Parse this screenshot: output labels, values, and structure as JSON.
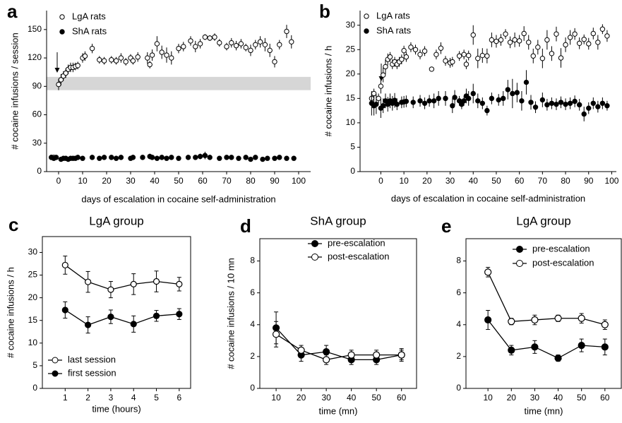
{
  "chart_data": [
    {
      "type": "scatter",
      "panel_label": "a",
      "ylabel": "# cocaine infusions / session",
      "xlabel": "days of escalation in cocaine self-administration",
      "xlim": [
        -5,
        105
      ],
      "ylim": [
        0,
        170
      ],
      "xticks": [
        0,
        10,
        20,
        30,
        40,
        50,
        60,
        70,
        80,
        90,
        100
      ],
      "yticks": [
        0,
        30,
        60,
        90,
        120,
        150
      ],
      "frame": false,
      "band": [
        86,
        100
      ],
      "legend": "upper left",
      "series": [
        {
          "name": "LgA rats",
          "color": "#000000",
          "fill": "#ffffff",
          "x": [
            -3,
            -2,
            0,
            1,
            2,
            3,
            4,
            5,
            6,
            7,
            8,
            10,
            11,
            14,
            17,
            19,
            22,
            24,
            26,
            28,
            30,
            31,
            33,
            37,
            38,
            39,
            41,
            43,
            45,
            47,
            50,
            52,
            55,
            57,
            59,
            61,
            63,
            65,
            67,
            70,
            72,
            74,
            76,
            78,
            80,
            82,
            84,
            86,
            88,
            90,
            92,
            95,
            97
          ],
          "values": [
            15,
            15,
            92,
            97,
            101,
            104,
            108,
            110,
            110,
            111,
            112,
            120,
            122,
            130,
            118,
            117,
            118,
            117,
            120,
            116,
            120,
            117,
            121,
            120,
            113,
            123,
            135,
            126,
            123,
            120,
            130,
            132,
            138,
            132,
            135,
            142,
            141,
            142,
            136,
            132,
            136,
            133,
            135,
            131,
            128,
            134,
            137,
            134,
            128,
            116,
            134,
            148,
            137
          ],
          "errors": [
            2,
            2,
            6,
            6,
            5,
            5,
            5,
            5,
            5,
            4,
            4,
            5,
            5,
            5,
            4,
            4,
            4,
            4,
            5,
            4,
            4,
            4,
            5,
            6,
            4,
            6,
            8,
            7,
            8,
            7,
            5,
            5,
            5,
            6,
            5,
            3,
            3,
            4,
            4,
            4,
            5,
            5,
            5,
            4,
            6,
            5,
            6,
            7,
            7,
            6,
            5,
            7,
            7
          ]
        },
        {
          "name": "ShA rats",
          "color": "#000000",
          "fill": "#000000",
          "x": [
            -3,
            -2,
            -1,
            1,
            2,
            3,
            4,
            5,
            6,
            7,
            8,
            10,
            14,
            17,
            19,
            22,
            24,
            26,
            30,
            31,
            35,
            38,
            39,
            41,
            43,
            45,
            47,
            50,
            54,
            57,
            59,
            61,
            63,
            67,
            70,
            72,
            75,
            78,
            80,
            82,
            85,
            87,
            90,
            92,
            95,
            98
          ],
          "values": [
            15,
            14,
            15,
            13,
            14,
            14,
            13,
            14,
            14,
            14,
            15,
            14,
            15,
            14,
            15,
            15,
            14,
            15,
            14,
            15,
            15,
            16,
            15,
            14,
            15,
            14,
            15,
            14,
            15,
            15,
            16,
            17,
            15,
            14,
            15,
            15,
            14,
            15,
            13,
            15,
            13,
            14,
            14,
            15,
            14,
            14
          ],
          "errors": [
            2,
            2,
            2,
            2,
            2,
            2,
            2,
            2,
            2,
            2,
            2,
            2,
            2,
            2,
            2,
            2,
            2,
            2,
            2,
            2,
            2,
            3,
            2,
            2,
            2,
            2,
            2,
            2,
            2,
            2,
            3,
            4,
            2,
            2,
            2,
            2,
            2,
            2,
            2,
            2,
            2,
            2,
            2,
            2,
            2,
            2
          ]
        }
      ]
    },
    {
      "type": "scatter",
      "panel_label": "b",
      "ylabel": "# cocaine infusions / h",
      "xlabel": "days of escalation in cocaine self-administration",
      "xlim": [
        -9,
        102
      ],
      "ylim": [
        0,
        33
      ],
      "xticks": [
        0,
        10,
        20,
        30,
        40,
        50,
        60,
        70,
        80,
        90,
        100
      ],
      "yticks": [
        0,
        5,
        10,
        15,
        20,
        25,
        30
      ],
      "frame": false,
      "legend": "upper left",
      "series": [
        {
          "name": "LgA rats",
          "color": "#000000",
          "fill": "#ffffff",
          "x": [
            -4,
            -3,
            -1,
            0,
            1,
            2,
            3,
            4,
            5,
            6,
            7,
            8,
            9,
            10,
            11,
            13,
            15,
            17,
            19,
            22,
            24,
            26,
            28,
            30,
            31,
            34,
            36,
            37,
            38,
            40,
            42,
            44,
            46,
            48,
            50,
            52,
            54,
            56,
            58,
            60,
            62,
            64,
            66,
            68,
            70,
            72,
            74,
            76,
            78,
            80,
            82,
            84,
            86,
            88,
            90,
            92,
            94,
            96,
            98
          ],
          "values": [
            15,
            16,
            15,
            17.5,
            19.8,
            21.5,
            23,
            23.5,
            22,
            22.5,
            22,
            22.5,
            23,
            24.8,
            23.5,
            25.5,
            25,
            24,
            24.7,
            21,
            24,
            25.3,
            22.7,
            22.3,
            22.5,
            23.7,
            24,
            22,
            23.8,
            28,
            23.2,
            23.8,
            23.7,
            27,
            26.7,
            27,
            28.2,
            26.5,
            27,
            26.8,
            28.3,
            26.5,
            23.7,
            25.5,
            23.2,
            27,
            24.2,
            28.2,
            23.3,
            26,
            27.5,
            28.2,
            26.3,
            27.1,
            26.2,
            28.3,
            26.5,
            29.2,
            27.8
          ],
          "errors": [
            1.2,
            1,
            1,
            1.5,
            1.5,
            1.5,
            1.2,
            1,
            1,
            1,
            1,
            1,
            1,
            1,
            1,
            1,
            1,
            1,
            1,
            0.5,
            1,
            1.2,
            1,
            1,
            1,
            1,
            1,
            1,
            1,
            2,
            2,
            1.5,
            1.5,
            1.5,
            1.3,
            1.2,
            1,
            1.2,
            1.5,
            1.2,
            1.5,
            1.5,
            1.5,
            1.5,
            2,
            2,
            1.5,
            1.5,
            2,
            1.5,
            1.5,
            1.2,
            1.2,
            1,
            1.2,
            1.2,
            1.5,
            1,
            1.2
          ]
        },
        {
          "name": "ShA rats",
          "color": "#000000",
          "fill": "#000000",
          "x": [
            -4,
            -3,
            -2,
            0,
            1,
            2,
            3,
            4,
            5,
            6,
            7,
            9,
            10,
            11,
            14,
            17,
            19,
            21,
            23,
            25,
            28,
            31,
            32,
            34,
            35,
            36,
            37,
            38,
            40,
            42,
            44,
            46,
            48,
            51,
            53,
            55,
            57,
            59,
            61,
            63,
            65,
            67,
            70,
            72,
            74,
            76,
            78,
            80,
            82,
            84,
            86,
            88,
            90,
            92,
            94,
            96,
            98
          ],
          "values": [
            14,
            13.5,
            13.8,
            13,
            13.5,
            14.5,
            13.8,
            14.5,
            14,
            14.6,
            13.8,
            14.2,
            14.3,
            14.4,
            14.2,
            14.5,
            14,
            14.5,
            14.5,
            15,
            15,
            13.5,
            15.2,
            14.5,
            13.8,
            14.5,
            15.5,
            15,
            16,
            14.5,
            14,
            12.5,
            15,
            14.7,
            15,
            16.8,
            16,
            16.2,
            14.5,
            18.3,
            14.2,
            13.2,
            14.7,
            13.7,
            14,
            13.8,
            14.2,
            13.8,
            14,
            14.4,
            13.7,
            11.8,
            13,
            14,
            13.3,
            14,
            13.5
          ],
          "errors": [
            2.5,
            2,
            2,
            2,
            1.5,
            1.5,
            1.5,
            1.5,
            1.5,
            1.5,
            1.2,
            1.2,
            1.2,
            1.2,
            1.2,
            1.2,
            1.2,
            1.2,
            1.5,
            1.5,
            1.5,
            1.5,
            1.5,
            1,
            1,
            1,
            1.5,
            1.5,
            2,
            1.5,
            1.2,
            1,
            1.2,
            1.2,
            1.5,
            2,
            3,
            2,
            2,
            2.5,
            1.5,
            1.2,
            1.5,
            1.2,
            1.2,
            1.2,
            1.2,
            1.2,
            1.2,
            1.2,
            1.2,
            1.5,
            1.2,
            1.2,
            1.2,
            1.2,
            1
          ]
        }
      ]
    },
    {
      "type": "line",
      "panel_label": "c",
      "title": "LgA group",
      "ylabel": "# cocaine infusions / h",
      "xlabel": "time (hours)",
      "x": [
        1,
        2,
        3,
        4,
        5,
        6
      ],
      "xlim": [
        0,
        6.5
      ],
      "ylim": [
        0,
        33.5
      ],
      "xticks": [
        1,
        2,
        3,
        4,
        5,
        6
      ],
      "yticks": [
        0,
        5,
        10,
        15,
        20,
        25,
        30
      ],
      "frame": true,
      "legend": "lower left",
      "series": [
        {
          "name": "last session",
          "color": "#000000",
          "fill": "#ffffff",
          "values": [
            27.2,
            23.5,
            21.8,
            23,
            23.6,
            23
          ],
          "errors": [
            2,
            2.3,
            1.8,
            2.3,
            2.3,
            1.5
          ]
        },
        {
          "name": "first session",
          "color": "#000000",
          "fill": "#000000",
          "values": [
            17.3,
            14,
            15.8,
            14.2,
            16,
            16.4
          ],
          "errors": [
            1.8,
            1.8,
            1.5,
            1.8,
            1.2,
            1.2
          ]
        }
      ]
    },
    {
      "type": "line",
      "panel_label": "d",
      "title": "ShA group",
      "ylabel": "# cocaine infusions / 10 mn",
      "xlabel": "time (mn)",
      "x": [
        10,
        20,
        30,
        40,
        50,
        60
      ],
      "xlim": [
        3.5,
        66
      ],
      "ylim": [
        0,
        9.4
      ],
      "xticks": [
        10,
        20,
        30,
        40,
        50,
        60
      ],
      "yticks": [
        0,
        2,
        4,
        6,
        8
      ],
      "frame": true,
      "legend": "upper right",
      "series": [
        {
          "name": "pre-escalation",
          "color": "#000000",
          "fill": "#000000",
          "values": [
            3.8,
            2.1,
            2.3,
            1.8,
            1.8,
            2.1
          ],
          "errors": [
            1,
            0.4,
            0.4,
            0.3,
            0.3,
            0.4
          ]
        },
        {
          "name": "post-escalation",
          "color": "#000000",
          "fill": "#ffffff",
          "values": [
            3.4,
            2.4,
            1.8,
            2.1,
            2.1,
            2.1
          ],
          "errors": [
            0.8,
            0.3,
            0.3,
            0.3,
            0.3,
            0.3
          ]
        }
      ]
    },
    {
      "type": "line",
      "panel_label": "e",
      "title": "LgA group",
      "ylabel": "",
      "xlabel": "time (mn)",
      "x": [
        10,
        20,
        30,
        40,
        50,
        60
      ],
      "xlim": [
        0.6,
        67
      ],
      "ylim": [
        0,
        9.4
      ],
      "xticks": [
        10,
        20,
        30,
        40,
        50,
        60
      ],
      "yticks": [
        0,
        2,
        4,
        6,
        8
      ],
      "frame": true,
      "legend": "upper right",
      "series": [
        {
          "name": "pre-escalation",
          "color": "#000000",
          "fill": "#000000",
          "values": [
            4.3,
            2.4,
            2.6,
            1.9,
            2.7,
            2.6
          ],
          "errors": [
            0.6,
            0.3,
            0.4,
            0.2,
            0.4,
            0.5
          ]
        },
        {
          "name": "post-escalation",
          "color": "#000000",
          "fill": "#ffffff",
          "values": [
            7.3,
            4.2,
            4.3,
            4.4,
            4.4,
            4.0
          ],
          "errors": [
            0.3,
            0.2,
            0.3,
            0.2,
            0.3,
            0.3
          ]
        }
      ]
    }
  ]
}
